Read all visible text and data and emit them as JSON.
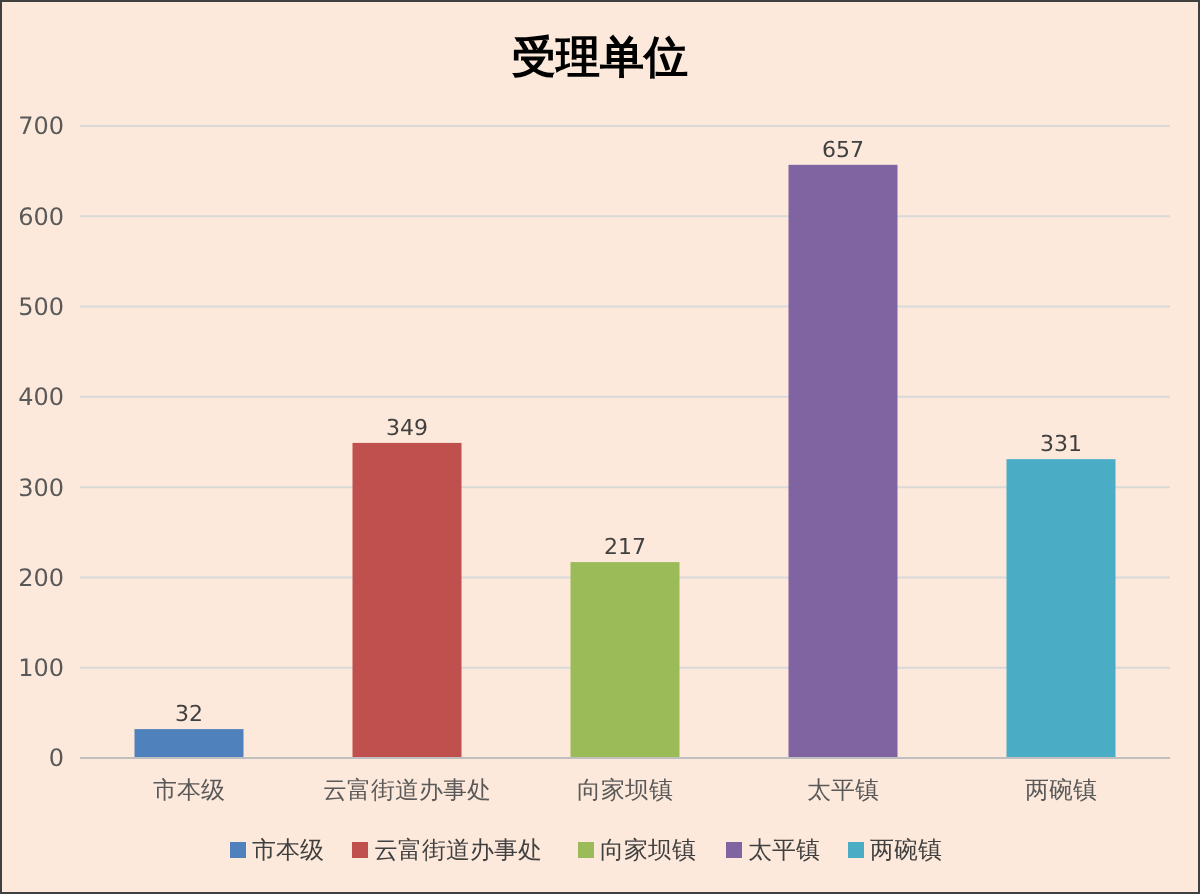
{
  "chart_data": {
    "type": "bar",
    "title": "受理单位",
    "categories": [
      "市本级",
      "云富街道办事处",
      "向家坝镇",
      "太平镇",
      "两碗镇"
    ],
    "series": [
      {
        "name": "市本级",
        "color": "#4f81bd",
        "values": [
          32,
          null,
          null,
          null,
          null
        ]
      },
      {
        "name": "云富街道办事处",
        "color": "#c0504d",
        "values": [
          null,
          349,
          null,
          null,
          null
        ]
      },
      {
        "name": "向家坝镇",
        "color": "#9bbb59",
        "values": [
          null,
          null,
          217,
          null,
          null
        ]
      },
      {
        "name": "太平镇",
        "color": "#8064a2",
        "values": [
          null,
          null,
          null,
          657,
          null
        ]
      },
      {
        "name": "两碗镇",
        "color": "#4bacc6",
        "values": [
          null,
          null,
          null,
          null,
          331
        ]
      }
    ],
    "stacked": true,
    "ylim": [
      0,
      700
    ],
    "yticks": [
      0,
      100,
      200,
      300,
      400,
      500,
      600,
      700
    ],
    "grid": "y",
    "data_labels": true,
    "legend": "bottom"
  }
}
